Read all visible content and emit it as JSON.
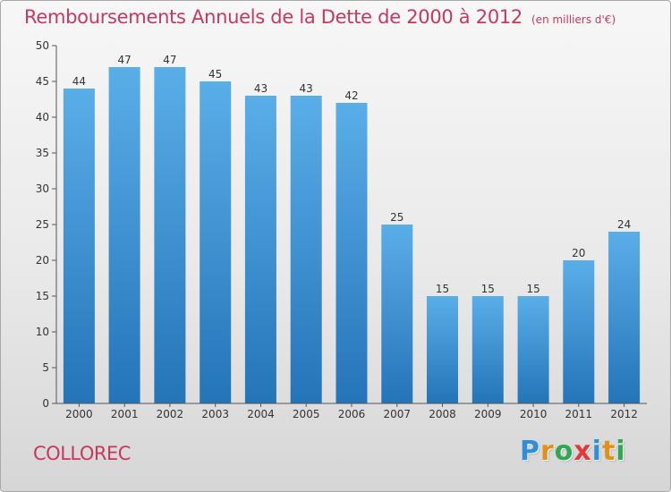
{
  "title": "Remboursements Annuels de la Dette de 2000 à 2012",
  "subtitle": "(en milliers d'€)",
  "commune": "COLLOREC",
  "logo": {
    "letters": [
      "P",
      "r",
      "o",
      "x",
      "i",
      "t",
      "i"
    ],
    "colors": [
      "#2f8fd6",
      "#e0901c",
      "#2fa84f",
      "#e03a3a",
      "#2f8fd6",
      "#e0901c",
      "#2fa84f"
    ]
  },
  "colors": {
    "accent": "#c8385e",
    "bar_top": "#5aaee8",
    "bar_bottom": "#2474b8"
  },
  "chart_data": {
    "type": "bar",
    "categories": [
      "2000",
      "2001",
      "2002",
      "2003",
      "2004",
      "2005",
      "2006",
      "2007",
      "2008",
      "2009",
      "2010",
      "2011",
      "2012"
    ],
    "values": [
      44,
      47,
      47,
      45,
      43,
      43,
      42,
      25,
      15,
      15,
      15,
      20,
      24
    ],
    "title": "Remboursements Annuels de la Dette de 2000 à 2012",
    "xlabel": "",
    "ylabel": "",
    "ylim": [
      0,
      50
    ],
    "yticks": [
      0,
      5,
      10,
      15,
      20,
      25,
      30,
      35,
      40,
      45,
      50
    ],
    "grid": false,
    "data_labels": true
  }
}
